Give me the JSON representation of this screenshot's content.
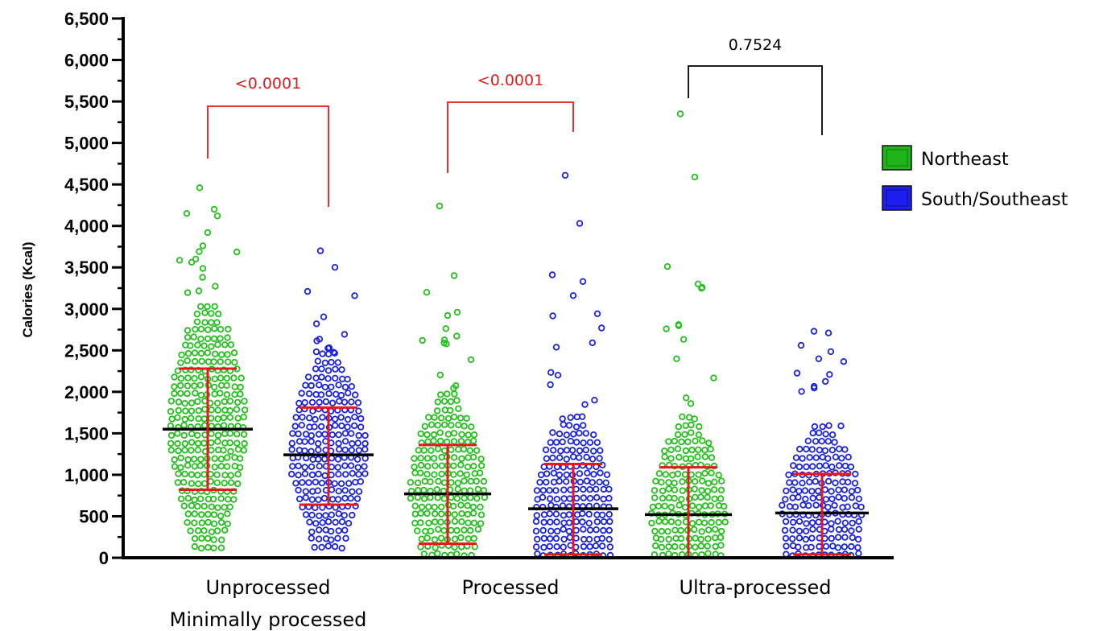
{
  "chart_data": {
    "type": "scatter",
    "subtype": "dot-plot (beeswarm) with mean and SD error bars",
    "ylabel": "Calories (Kcal)",
    "ylim": [
      0,
      6500
    ],
    "yticks": [
      0,
      500,
      1000,
      1500,
      2000,
      2500,
      3000,
      3500,
      4000,
      4500,
      5000,
      5500,
      6000,
      6500
    ],
    "ytick_labels": [
      "0",
      "500",
      "1,000",
      "1,500",
      "2,000",
      "2,500",
      "3,000",
      "3,500",
      "4,000",
      "4,500",
      "5,000",
      "5,500",
      "6,000",
      "6,500"
    ],
    "categories": [
      {
        "line1": "Unprocessed",
        "line2": "Minimally processed"
      },
      {
        "line1": "Processed",
        "line2": ""
      },
      {
        "line1": "Ultra-processed",
        "line2": ""
      }
    ],
    "series": [
      {
        "name": "Northeast",
        "color": "#22c01a",
        "legend_fill": "#1fb51a",
        "groups": [
          {
            "mean": 1550,
            "sd_low": 820,
            "sd_high": 2280,
            "max": 4460,
            "min": 90,
            "outliers": [
              4460,
              4200,
              4150,
              4120,
              3920,
              3760
            ]
          },
          {
            "mean": 770,
            "sd_low": 170,
            "sd_high": 1360,
            "max": 4240,
            "min": 0,
            "outliers": [
              4240,
              3400,
              3200,
              2960,
              2920
            ]
          },
          {
            "mean": 520,
            "sd_low": 0,
            "sd_high": 1090,
            "max": 5350,
            "min": 0,
            "outliers": [
              5350,
              4590,
              3510,
              3300
            ]
          }
        ]
      },
      {
        "name": "South/Southeast",
        "color": "#1a22e0",
        "legend_fill": "#1d1ef0",
        "groups": [
          {
            "mean": 1240,
            "sd_low": 640,
            "sd_high": 1810,
            "max": 3700,
            "min": 90,
            "outliers": [
              3700,
              3500,
              3210
            ]
          },
          {
            "mean": 590,
            "sd_low": 40,
            "sd_high": 1130,
            "max": 4610,
            "min": 0,
            "outliers": [
              4610,
              4030,
              3410,
              3330,
              3160
            ]
          },
          {
            "mean": 540,
            "sd_low": 40,
            "sd_high": 1010,
            "max": 2730,
            "min": 0,
            "outliers": [
              2730,
              2710,
              2560
            ]
          }
        ]
      }
    ],
    "mean_line_color": "#000000",
    "error_bar_color": "#e31a1c",
    "annotations": [
      {
        "category": 0,
        "text": "<0.0001",
        "color": "#e31a1c"
      },
      {
        "category": 1,
        "text": "<0.0001",
        "color": "#e31a1c"
      },
      {
        "category": 2,
        "text": "0.7524",
        "color": "#000000"
      }
    ],
    "legend_position": "right"
  }
}
